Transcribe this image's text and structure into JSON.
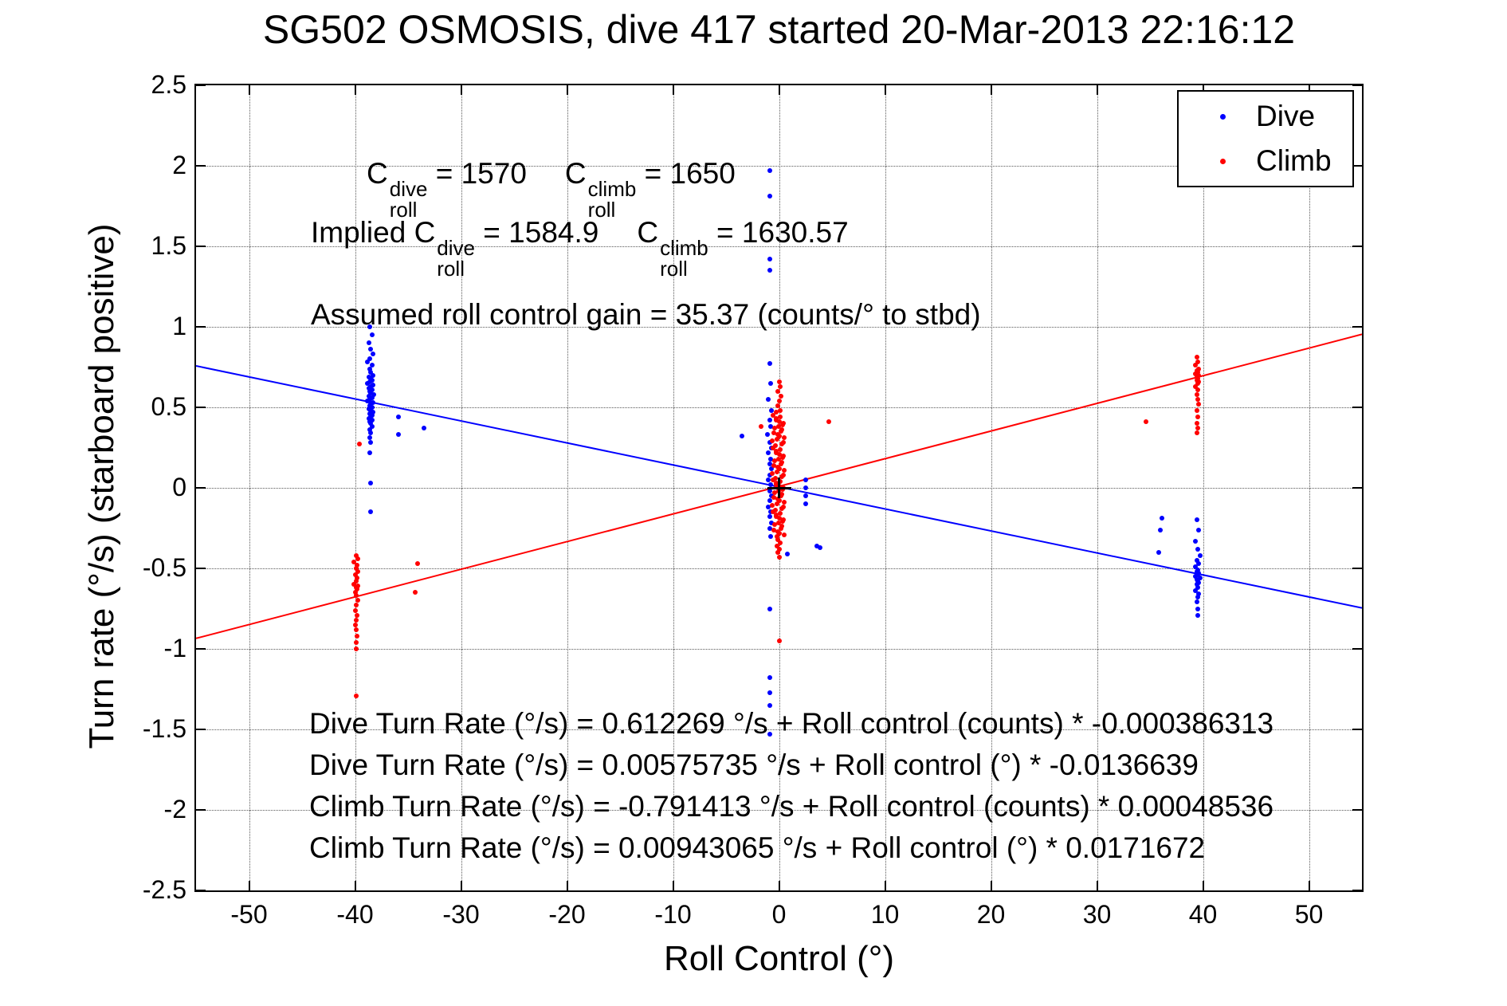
{
  "chart_data": {
    "type": "scatter",
    "title": "SG502 OSMOSIS, dive 417 started 20-Mar-2013 22:16:12",
    "xlabel": "Roll Control (°)",
    "ylabel": "Turn rate (°/s) (starboard positive)",
    "xlim": [
      -55,
      55
    ],
    "ylim": [
      -2.5,
      2.5
    ],
    "grid": true,
    "legend_position": "top-right",
    "xtick_values": [
      -50,
      -40,
      -30,
      -20,
      -10,
      0,
      10,
      20,
      30,
      40,
      50
    ],
    "xtick_labels": [
      "-50",
      "-40",
      "-30",
      "-20",
      "-10",
      "0",
      "10",
      "20",
      "30",
      "40",
      "50"
    ],
    "ytick_values": [
      -2.5,
      -2,
      -1.5,
      -1,
      -0.5,
      0,
      0.5,
      1,
      1.5,
      2,
      2.5
    ],
    "ytick_labels": [
      "-2.5",
      "-2",
      "-1.5",
      "-1",
      "-0.5",
      "0",
      "0.5",
      "1",
      "1.5",
      "2",
      "2.5"
    ],
    "origin_marker": {
      "x": 0,
      "y": 0,
      "symbol": "+",
      "color": "#000000"
    },
    "fit_lines": [
      {
        "name": "Dive fit",
        "color": "#0000ff",
        "intercept": 0.00575735,
        "slope": -0.0136639
      },
      {
        "name": "Climb fit",
        "color": "#ff0000",
        "intercept": 0.00943065,
        "slope": 0.0171672
      }
    ],
    "series": [
      {
        "name": "Dive",
        "color": "#0000ff",
        "points": [
          [
            -38.6,
            1.0
          ],
          [
            -38.4,
            0.95
          ],
          [
            -38.7,
            0.9
          ],
          [
            -38.5,
            0.86
          ],
          [
            -38.3,
            0.83
          ],
          [
            -38.6,
            0.8
          ],
          [
            -38.8,
            0.78
          ],
          [
            -38.4,
            0.76
          ],
          [
            -38.6,
            0.74
          ],
          [
            -38.5,
            0.72
          ],
          [
            -38.3,
            0.7
          ],
          [
            -38.7,
            0.69
          ],
          [
            -38.5,
            0.68
          ],
          [
            -38.4,
            0.67
          ],
          [
            -38.6,
            0.66
          ],
          [
            -38.8,
            0.65
          ],
          [
            -38.3,
            0.64
          ],
          [
            -38.5,
            0.63
          ],
          [
            -38.7,
            0.62
          ],
          [
            -38.4,
            0.61
          ],
          [
            -38.6,
            0.6
          ],
          [
            -38.5,
            0.59
          ],
          [
            -38.2,
            0.58
          ],
          [
            -38.7,
            0.57
          ],
          [
            -38.4,
            0.56
          ],
          [
            -38.6,
            0.55
          ],
          [
            -38.8,
            0.54
          ],
          [
            -38.3,
            0.53
          ],
          [
            -38.5,
            0.52
          ],
          [
            -38.6,
            0.51
          ],
          [
            -38.4,
            0.5
          ],
          [
            -38.7,
            0.49
          ],
          [
            -38.5,
            0.48
          ],
          [
            -38.3,
            0.47
          ],
          [
            -38.6,
            0.46
          ],
          [
            -38.4,
            0.45
          ],
          [
            -38.5,
            0.44
          ],
          [
            -38.7,
            0.43
          ],
          [
            -38.4,
            0.42
          ],
          [
            -38.6,
            0.41
          ],
          [
            -38.5,
            0.4
          ],
          [
            -38.4,
            0.38
          ],
          [
            -38.6,
            0.36
          ],
          [
            -38.5,
            0.34
          ],
          [
            -38.6,
            0.31
          ],
          [
            -38.5,
            0.28
          ],
          [
            -38.6,
            0.22
          ],
          [
            -38.5,
            0.03
          ],
          [
            -38.5,
            -0.15
          ],
          [
            -35.9,
            0.44
          ],
          [
            -33.5,
            0.37
          ],
          [
            -35.9,
            0.33
          ],
          [
            -0.9,
            1.97
          ],
          [
            -0.9,
            1.81
          ],
          [
            -0.9,
            1.42
          ],
          [
            -0.9,
            1.35
          ],
          [
            -0.9,
            0.77
          ],
          [
            -0.8,
            0.65
          ],
          [
            -1.0,
            0.55
          ],
          [
            -0.7,
            0.48
          ],
          [
            -0.9,
            0.42
          ],
          [
            -1.1,
            0.33
          ],
          [
            -3.5,
            0.32
          ],
          [
            -0.8,
            0.38
          ],
          [
            -0.9,
            0.28
          ],
          [
            -0.7,
            0.25
          ],
          [
            -1.0,
            0.22
          ],
          [
            -0.8,
            0.18
          ],
          [
            -0.9,
            0.15
          ],
          [
            -0.7,
            0.12
          ],
          [
            -0.9,
            0.08
          ],
          [
            -1.0,
            0.05
          ],
          [
            -0.8,
            0.02
          ],
          [
            -0.9,
            -0.02
          ],
          [
            -0.7,
            -0.05
          ],
          [
            -0.9,
            -0.08
          ],
          [
            -1.0,
            -0.12
          ],
          [
            -0.8,
            -0.15
          ],
          [
            -0.9,
            -0.18
          ],
          [
            -0.7,
            -0.22
          ],
          [
            -0.9,
            -0.25
          ],
          [
            -0.8,
            -0.3
          ],
          [
            0.8,
            -0.41
          ],
          [
            -0.9,
            -0.75
          ],
          [
            -0.9,
            -1.18
          ],
          [
            -0.9,
            -1.27
          ],
          [
            -0.9,
            -1.35
          ],
          [
            -0.9,
            -1.53
          ],
          [
            2.5,
            0.05
          ],
          [
            2.5,
            0.0
          ],
          [
            2.5,
            -0.05
          ],
          [
            2.5,
            -0.1
          ],
          [
            3.6,
            -0.36
          ],
          [
            3.9,
            -0.37
          ],
          [
            39.4,
            -0.2
          ],
          [
            39.6,
            -0.26
          ],
          [
            39.3,
            -0.33
          ],
          [
            39.5,
            -0.38
          ],
          [
            39.7,
            -0.42
          ],
          [
            39.4,
            -0.45
          ],
          [
            39.6,
            -0.47
          ],
          [
            39.3,
            -0.49
          ],
          [
            39.5,
            -0.51
          ],
          [
            39.4,
            -0.52
          ],
          [
            39.6,
            -0.53
          ],
          [
            39.5,
            -0.54
          ],
          [
            39.3,
            -0.55
          ],
          [
            39.7,
            -0.56
          ],
          [
            39.4,
            -0.57
          ],
          [
            39.5,
            -0.58
          ],
          [
            39.6,
            -0.59
          ],
          [
            39.4,
            -0.6
          ],
          [
            39.5,
            -0.62
          ],
          [
            39.3,
            -0.64
          ],
          [
            39.6,
            -0.66
          ],
          [
            39.5,
            -0.68
          ],
          [
            39.4,
            -0.71
          ],
          [
            39.5,
            -0.75
          ],
          [
            39.5,
            -0.79
          ],
          [
            36.1,
            -0.19
          ],
          [
            36.0,
            -0.26
          ],
          [
            35.8,
            -0.4
          ]
        ]
      },
      {
        "name": "Climb",
        "color": "#ff0000",
        "points": [
          [
            -39.9,
            -0.42
          ],
          [
            -39.7,
            -0.44
          ],
          [
            -40.1,
            -0.46
          ],
          [
            -39.8,
            -0.48
          ],
          [
            -39.9,
            -0.5
          ],
          [
            -39.7,
            -0.52
          ],
          [
            -40.0,
            -0.54
          ],
          [
            -39.8,
            -0.56
          ],
          [
            -39.9,
            -0.58
          ],
          [
            -40.1,
            -0.6
          ],
          [
            -39.7,
            -0.61
          ],
          [
            -39.9,
            -0.62
          ],
          [
            -39.8,
            -0.63
          ],
          [
            -40.0,
            -0.65
          ],
          [
            -39.9,
            -0.67
          ],
          [
            -39.7,
            -0.7
          ],
          [
            -39.9,
            -0.73
          ],
          [
            -40.0,
            -0.76
          ],
          [
            -39.8,
            -0.79
          ],
          [
            -39.9,
            -0.82
          ],
          [
            -40.0,
            -0.85
          ],
          [
            -39.9,
            -0.88
          ],
          [
            -39.8,
            -0.92
          ],
          [
            -39.9,
            -0.96
          ],
          [
            -39.9,
            -1.0
          ],
          [
            -39.6,
            0.27
          ],
          [
            -34.1,
            -0.47
          ],
          [
            -34.3,
            -0.65
          ],
          [
            -39.9,
            -1.29
          ],
          [
            -0.55,
            0.45
          ],
          [
            -0.25,
            0.43
          ],
          [
            0.05,
            0.41
          ],
          [
            0.35,
            0.39
          ],
          [
            -0.4,
            0.37
          ],
          [
            0.2,
            0.35
          ],
          [
            -0.1,
            0.33
          ],
          [
            0.5,
            0.31
          ],
          [
            -0.65,
            0.29
          ],
          [
            0.3,
            0.27
          ],
          [
            -0.55,
            0.25
          ],
          [
            -0.25,
            0.23
          ],
          [
            0.05,
            0.21
          ],
          [
            0.35,
            0.19
          ],
          [
            -0.4,
            0.17
          ],
          [
            0.2,
            0.15
          ],
          [
            -0.1,
            0.13
          ],
          [
            0.5,
            0.11
          ],
          [
            -0.65,
            0.09
          ],
          [
            0.3,
            0.07
          ],
          [
            -0.55,
            0.05
          ],
          [
            -0.25,
            0.03
          ],
          [
            0.05,
            0.01
          ],
          [
            0.35,
            -0.01
          ],
          [
            -0.4,
            -0.03
          ],
          [
            0.2,
            -0.05
          ],
          [
            -0.1,
            -0.07
          ],
          [
            0.5,
            -0.09
          ],
          [
            -0.65,
            -0.11
          ],
          [
            0.3,
            -0.13
          ],
          [
            -0.55,
            -0.15
          ],
          [
            -0.25,
            -0.17
          ],
          [
            0.05,
            -0.19
          ],
          [
            0.35,
            -0.21
          ],
          [
            -0.4,
            -0.23
          ],
          [
            0.2,
            -0.25
          ],
          [
            -0.1,
            -0.27
          ],
          [
            0.5,
            -0.29
          ],
          [
            0.1,
            0.44
          ],
          [
            -0.3,
            0.42
          ],
          [
            0.4,
            0.4
          ],
          [
            -0.05,
            0.38
          ],
          [
            0.25,
            0.36
          ],
          [
            -0.5,
            0.34
          ],
          [
            0.0,
            0.32
          ],
          [
            -0.2,
            0.3
          ],
          [
            0.45,
            0.28
          ],
          [
            -0.35,
            0.26
          ],
          [
            0.1,
            0.24
          ],
          [
            -0.3,
            0.22
          ],
          [
            0.4,
            0.2
          ],
          [
            -0.05,
            0.18
          ],
          [
            0.25,
            0.16
          ],
          [
            -0.5,
            0.14
          ],
          [
            0.0,
            0.12
          ],
          [
            -0.2,
            0.1
          ],
          [
            0.45,
            0.08
          ],
          [
            -0.35,
            0.06
          ],
          [
            0.1,
            0.04
          ],
          [
            -0.3,
            0.02
          ],
          [
            0.4,
            0.0
          ],
          [
            -0.05,
            -0.02
          ],
          [
            0.25,
            -0.04
          ],
          [
            -0.5,
            -0.06
          ],
          [
            0.0,
            -0.08
          ],
          [
            -0.2,
            -0.1
          ],
          [
            0.45,
            -0.12
          ],
          [
            -0.35,
            -0.14
          ],
          [
            0.1,
            -0.16
          ],
          [
            -0.3,
            -0.18
          ],
          [
            0.4,
            -0.2
          ],
          [
            -0.05,
            -0.22
          ],
          [
            0.25,
            -0.24
          ],
          [
            -0.5,
            -0.26
          ],
          [
            0.0,
            -0.28
          ],
          [
            -0.2,
            -0.3
          ],
          [
            0.0,
            0.66
          ],
          [
            0.15,
            0.63
          ],
          [
            -0.1,
            0.6
          ],
          [
            0.2,
            0.57
          ],
          [
            0.0,
            0.54
          ],
          [
            -0.15,
            0.51
          ],
          [
            0.1,
            0.48
          ],
          [
            -0.3,
            0.47
          ],
          [
            -0.1,
            -0.32
          ],
          [
            0.1,
            -0.34
          ],
          [
            -0.2,
            -0.36
          ],
          [
            0.0,
            -0.38
          ],
          [
            -0.1,
            -0.4
          ],
          [
            0.0,
            -0.43
          ],
          [
            0.0,
            -0.95
          ],
          [
            4.7,
            0.41
          ],
          [
            -1.7,
            0.38
          ],
          [
            39.4,
            0.81
          ],
          [
            39.5,
            0.78
          ],
          [
            39.3,
            0.76
          ],
          [
            39.6,
            0.74
          ],
          [
            39.4,
            0.73
          ],
          [
            39.5,
            0.72
          ],
          [
            39.3,
            0.71
          ],
          [
            39.6,
            0.7
          ],
          [
            39.4,
            0.69
          ],
          [
            39.5,
            0.68
          ],
          [
            39.4,
            0.67
          ],
          [
            39.6,
            0.66
          ],
          [
            39.5,
            0.65
          ],
          [
            39.3,
            0.63
          ],
          [
            39.5,
            0.61
          ],
          [
            39.4,
            0.58
          ],
          [
            39.5,
            0.55
          ],
          [
            39.6,
            0.52
          ],
          [
            39.4,
            0.48
          ],
          [
            39.5,
            0.44
          ],
          [
            39.4,
            0.4
          ],
          [
            39.5,
            0.37
          ],
          [
            39.4,
            0.34
          ],
          [
            34.6,
            0.41
          ]
        ]
      }
    ]
  },
  "legend": {
    "items": [
      {
        "label": "Dive",
        "color": "#0000ff"
      },
      {
        "label": "Climb",
        "color": "#ff0000"
      }
    ]
  },
  "annotations": {
    "cal": {
      "c": "C",
      "dive_sup": "dive",
      "climb_sup": "climb",
      "roll_sub": "roll",
      "dive_val": " = 1570",
      "climb_val": " = 1650",
      "implied_prefix": "Implied ",
      "implied_dive_val": " = 1584.9",
      "implied_climb_val": " = 1630.57",
      "gain_line": "Assumed roll control gain = 35.37 (counts/° to stbd)"
    },
    "equations": [
      "Dive Turn Rate (°/s) = 0.612269 °/s + Roll control (counts) * -0.000386313",
      "Dive Turn Rate (°/s) = 0.00575735 °/s + Roll control (°) * -0.0136639",
      "Climb Turn Rate (°/s) = -0.791413 °/s + Roll control (counts) * 0.00048536",
      "Climb Turn Rate (°/s) = 0.00943065 °/s + Roll control (°) * 0.0171672"
    ]
  }
}
